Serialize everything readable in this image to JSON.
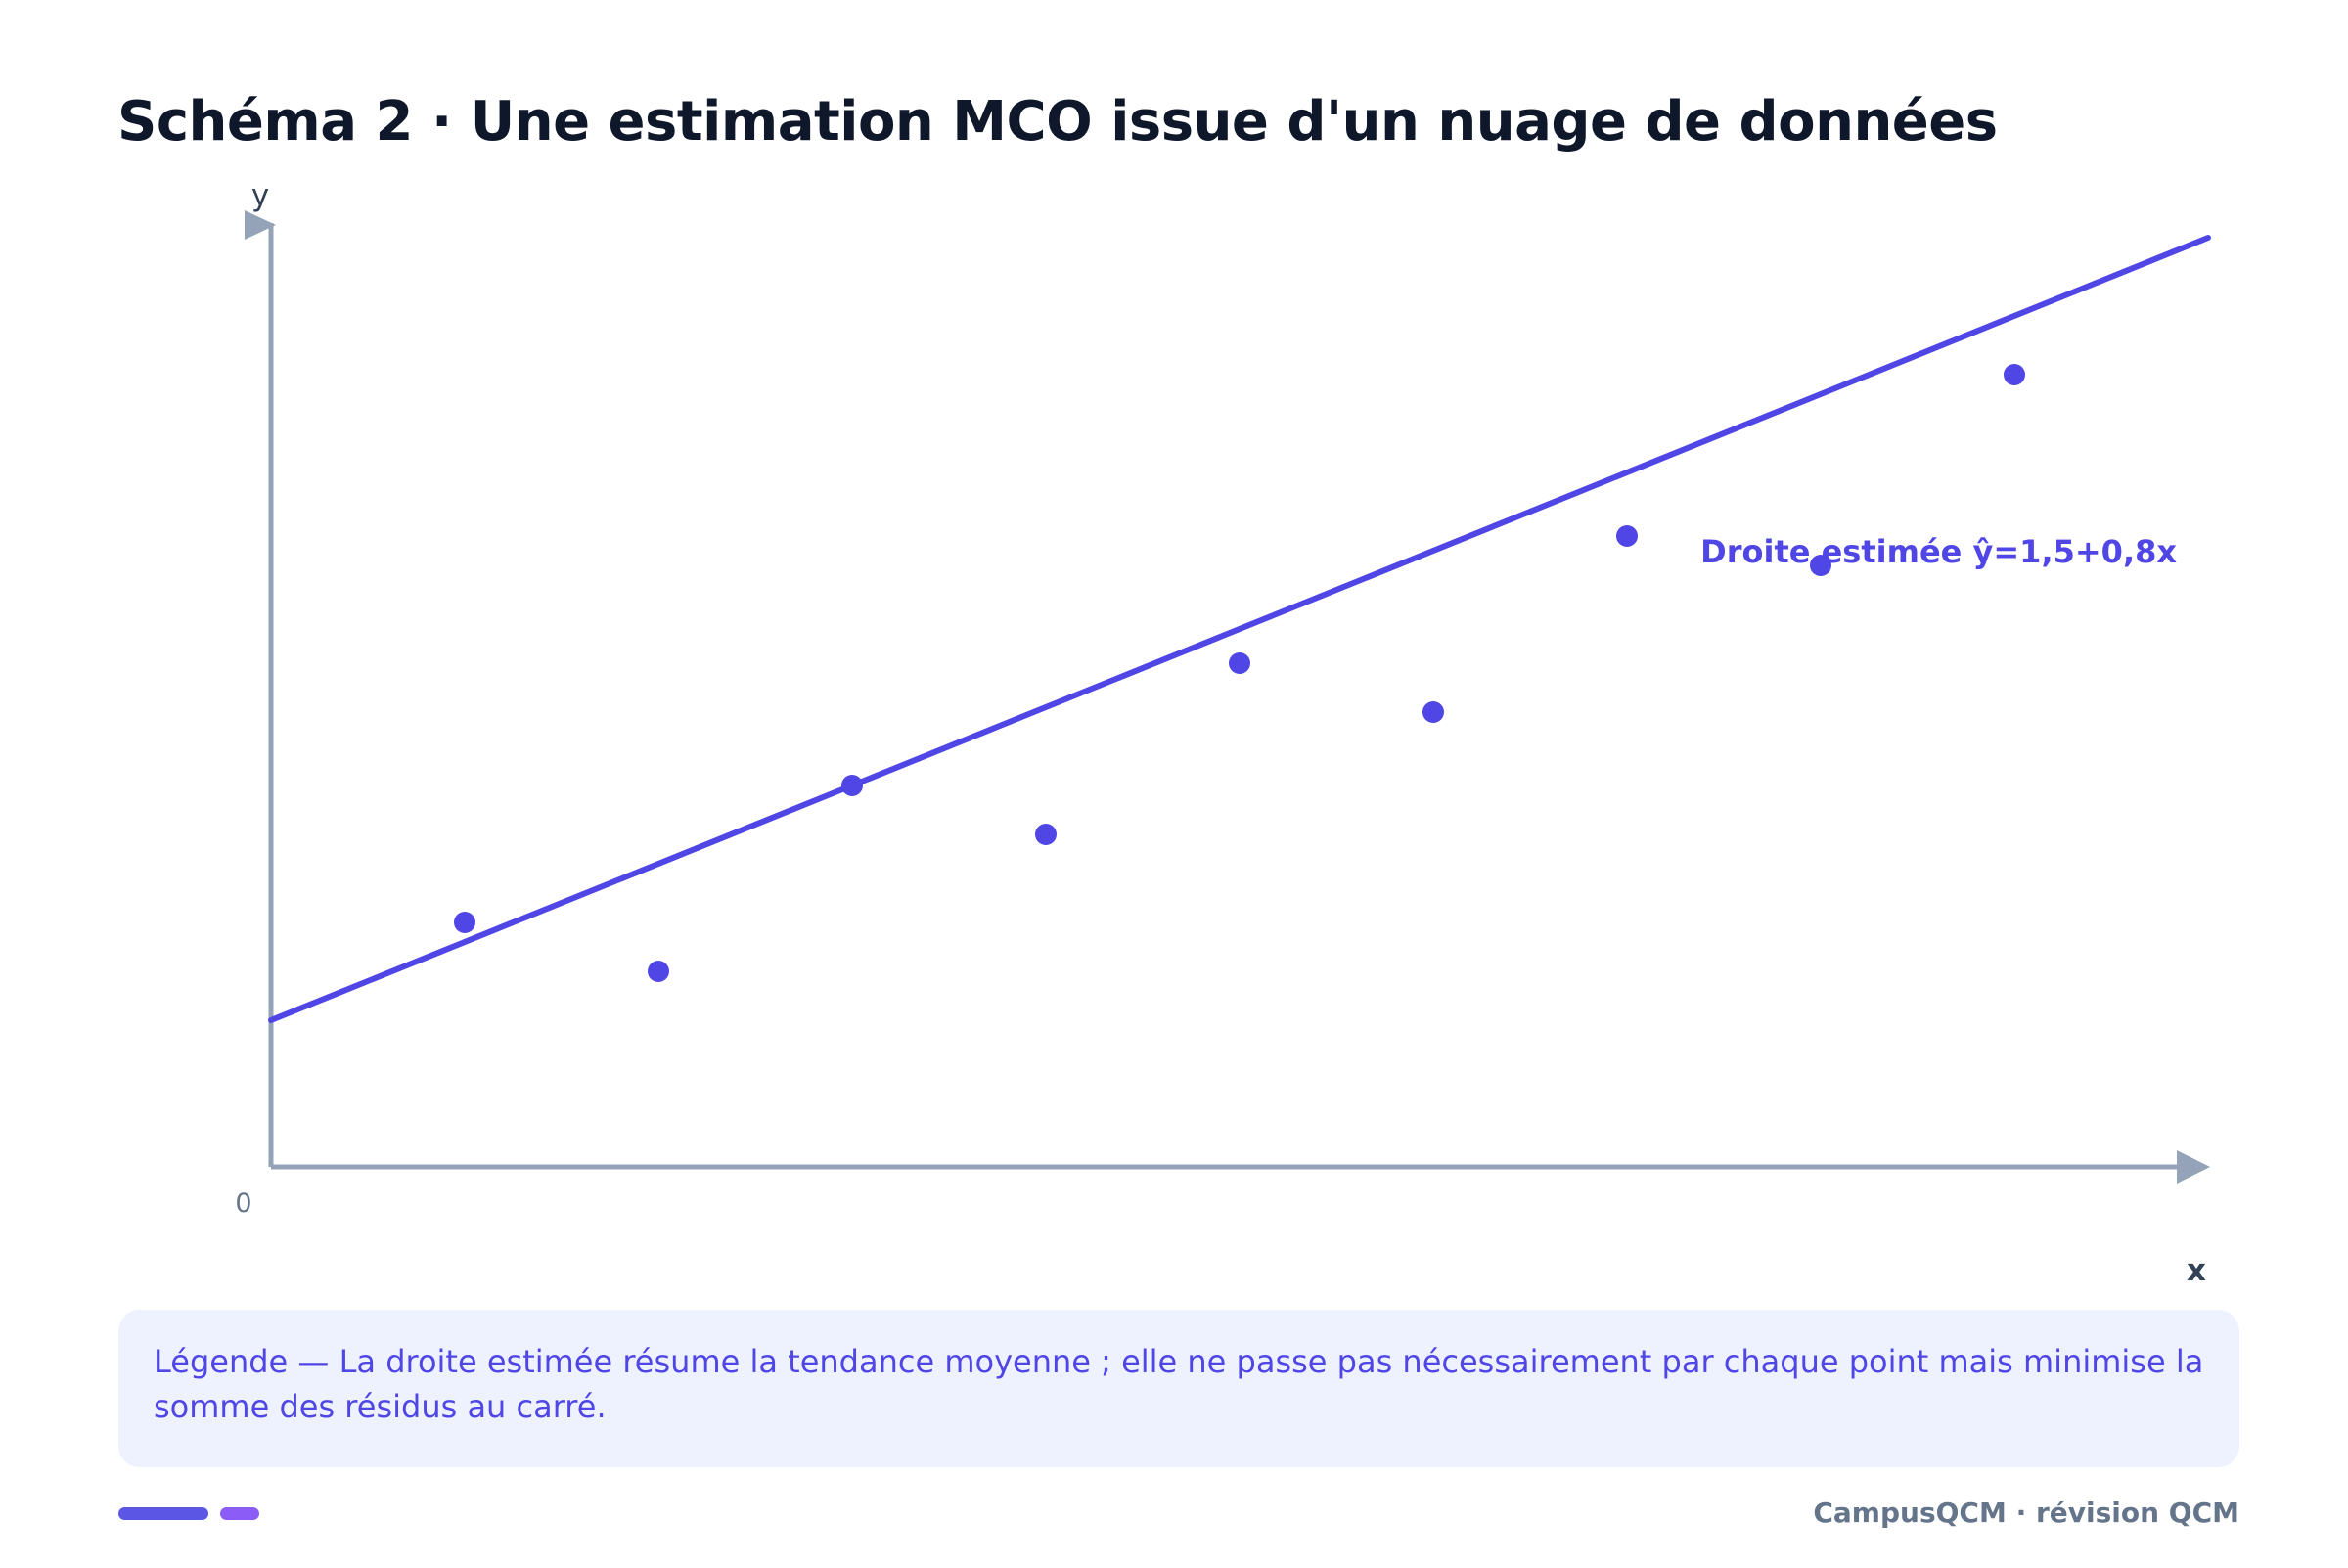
{
  "header": {
    "title": "Schéma 2 · Une estimation MCO issue d'un nuage de données"
  },
  "chart_data": {
    "type": "scatter",
    "title": "Schéma 2 · Une estimation MCO issue d'un nuage de données",
    "xlabel": "x",
    "ylabel": "y",
    "origin_label": "0",
    "xlim": [
      0,
      10
    ],
    "ylim": [
      0,
      10
    ],
    "grid": false,
    "points": [
      {
        "x": 1,
        "y": 2.5
      },
      {
        "x": 2,
        "y": 2.0
      },
      {
        "x": 3,
        "y": 3.9
      },
      {
        "x": 4,
        "y": 3.4
      },
      {
        "x": 5,
        "y": 5.15
      },
      {
        "x": 6,
        "y": 4.65
      },
      {
        "x": 7,
        "y": 6.45
      },
      {
        "x": 8,
        "y": 6.15
      },
      {
        "x": 9,
        "y": 8.1
      }
    ],
    "fit_line": {
      "intercept": 1.5,
      "slope": 0.8,
      "x_range": [
        0,
        10
      ],
      "label": "Droite estimée ŷ=1,5+0,8x"
    },
    "colors": {
      "points": "#4f46e5",
      "line": "#4f46e5",
      "axes": "#94a3b8"
    }
  },
  "legend": {
    "text": "Légende — La droite estimée résume la tendance moyenne ; elle ne passe pas nécessairement par chaque point mais minimise la somme des résidus au carré."
  },
  "footer": {
    "text": "CampusQCM · révision QCM"
  }
}
